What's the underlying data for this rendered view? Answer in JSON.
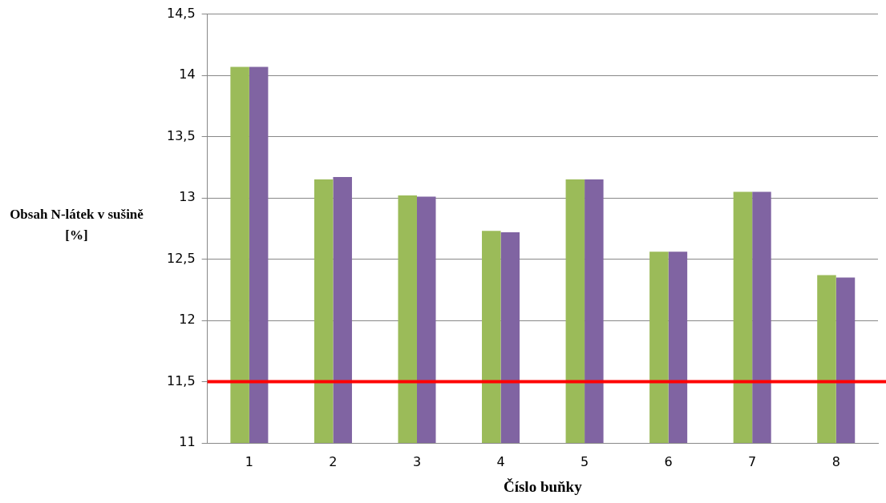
{
  "chart_data": {
    "type": "bar",
    "xlabel": "Číslo buňky",
    "ylabel": "Obsah N-látek v sušině [%]",
    "categories": [
      "1",
      "2",
      "3",
      "4",
      "5",
      "6",
      "7",
      "8"
    ],
    "series": [
      {
        "color": "#9bbb59",
        "values": [
          14.07,
          13.15,
          13.02,
          12.73,
          13.15,
          12.56,
          13.05,
          12.37
        ]
      },
      {
        "color": "#8064a2",
        "values": [
          14.07,
          13.17,
          13.01,
          12.72,
          13.15,
          12.56,
          13.05,
          12.35
        ]
      }
    ],
    "ylim": [
      11,
      14.5
    ],
    "yticks": [
      {
        "value": 11,
        "label": "11"
      },
      {
        "value": 11.5,
        "label": "11,5"
      },
      {
        "value": 12,
        "label": "12"
      },
      {
        "value": 12.5,
        "label": "12,5"
      },
      {
        "value": 13,
        "label": "13"
      },
      {
        "value": 13.5,
        "label": "13,5"
      },
      {
        "value": 14,
        "label": "14"
      },
      {
        "value": 14.5,
        "label": "14,5"
      }
    ],
    "ref_lines": [
      {
        "axis": "y",
        "value": 11.5,
        "color": "#ff0000"
      }
    ],
    "grid": "y",
    "legend": false
  }
}
